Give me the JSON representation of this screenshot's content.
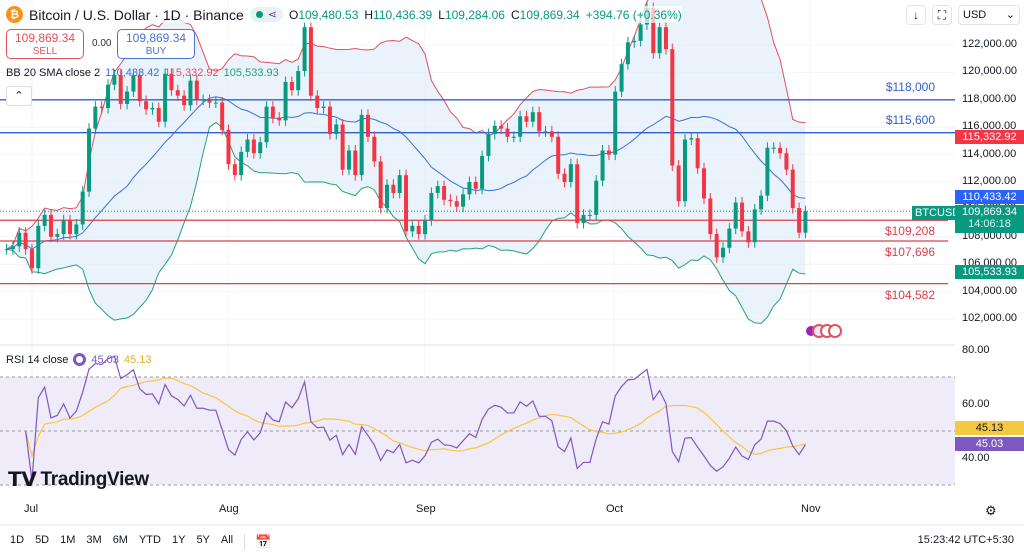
{
  "header": {
    "title": "Bitcoin / U.S. Dollar · 1D · Binance",
    "ohlc": {
      "o_label": "O",
      "o": "109,480.53",
      "h_label": "H",
      "h": "110,436.39",
      "l_label": "L",
      "l": "109,284.06",
      "c_label": "C",
      "c": "109,869.34",
      "change": "+394.76 (+0.36%)"
    }
  },
  "trade": {
    "sell_price": "109,869.34",
    "sell_label": "SELL",
    "spread": "0.00",
    "buy_price": "109,869.34",
    "buy_label": "BUY"
  },
  "bb": {
    "label": "BB 20 SMA close 2",
    "basis": "110,433.42",
    "upper": "115,332.92",
    "lower": "105,533.93"
  },
  "toolbar": {
    "currency": "USD"
  },
  "price_axis": [
    "122,000.00",
    "120,000.00",
    "118,000.00",
    "116,000.00",
    "114,000.00",
    "112,000.00",
    "110,000.00",
    "108,000.00",
    "106,000.00",
    "104,000.00",
    "102,000.00"
  ],
  "tags": {
    "upper": "115,332.92",
    "basis": "110,433.42",
    "symbol": "BTCUSD",
    "last": "109,869.34",
    "countdown": "14:06:18",
    "lower": "105,533.93"
  },
  "levels": [
    {
      "label": "$118,000",
      "value": 118000,
      "color": "#2f5fd0"
    },
    {
      "label": "$115,600",
      "value": 115600,
      "color": "#2f5fd0"
    },
    {
      "label": "$109,208",
      "value": 109208,
      "color": "#d8404c"
    },
    {
      "label": "$107,696",
      "value": 107696,
      "color": "#d8404c"
    },
    {
      "label": "$104,582",
      "value": 104582,
      "color": "#d8404c"
    }
  ],
  "rsi": {
    "label": "RSI 14 close",
    "value": "45.03",
    "ma": "45.13",
    "axis": [
      "80.00",
      "60.00",
      "40.00"
    ]
  },
  "brand": "TradingView",
  "months": [
    "Jul",
    "Aug",
    "Sep",
    "Oct",
    "Nov"
  ],
  "ranges": [
    "1D",
    "5D",
    "1M",
    "3M",
    "6M",
    "YTD",
    "1Y",
    "5Y",
    "All"
  ],
  "clock": "15:23:42 UTC+5:30",
  "colors": {
    "up": "#089981",
    "down": "#f23645",
    "bb_basis": "#3d6fd6",
    "bb_upper": "#e05060",
    "bb_lower": "#26a07a",
    "rsi": "#7e57c2",
    "rsi_ma": "#f5c842"
  },
  "chart_data": {
    "type": "candlestick",
    "symbol": "BTCUSD",
    "interval": "1D",
    "start": "2025-06-27",
    "end": "2025-11-01",
    "ylim": [
      101000,
      125000
    ],
    "rsi_ylim": [
      25,
      85
    ],
    "closes": [
      107100,
      107300,
      108300,
      107100,
      105700,
      108800,
      109600,
      108000,
      108200,
      109200,
      108200,
      108900,
      111300,
      115900,
      117500,
      117400,
      119100,
      119800,
      117700,
      118600,
      119800,
      117900,
      117300,
      117400,
      116400,
      119900,
      118700,
      118300,
      117600,
      119400,
      118000,
      118000,
      117800,
      117800,
      115800,
      113300,
      112500,
      114200,
      115100,
      114100,
      114900,
      117500,
      116700,
      116500,
      119300,
      118700,
      120100,
      123300,
      118300,
      117400,
      117500,
      115500,
      116200,
      112900,
      114300,
      112500,
      116900,
      115300,
      113500,
      110100,
      111800,
      111200,
      112500,
      108400,
      108800,
      108200,
      109200,
      111200,
      111700,
      110700,
      110600,
      110200,
      111100,
      112000,
      111500,
      113900,
      115500,
      116100,
      115900,
      115300,
      115300,
      116800,
      116400,
      117100,
      115700,
      115700,
      115300,
      112600,
      112000,
      113300,
      109000,
      109600,
      109600,
      112100,
      114300,
      114000,
      118600,
      120600,
      122200,
      122300,
      123500,
      124700,
      121400,
      123300,
      121700,
      113200,
      110600,
      115100,
      115200,
      113000,
      110800,
      108200,
      106500,
      107200,
      108600,
      110500,
      108400,
      107600,
      110000,
      111000,
      114500,
      114500,
      114100,
      112900,
      110100,
      108300,
      109869
    ]
  }
}
